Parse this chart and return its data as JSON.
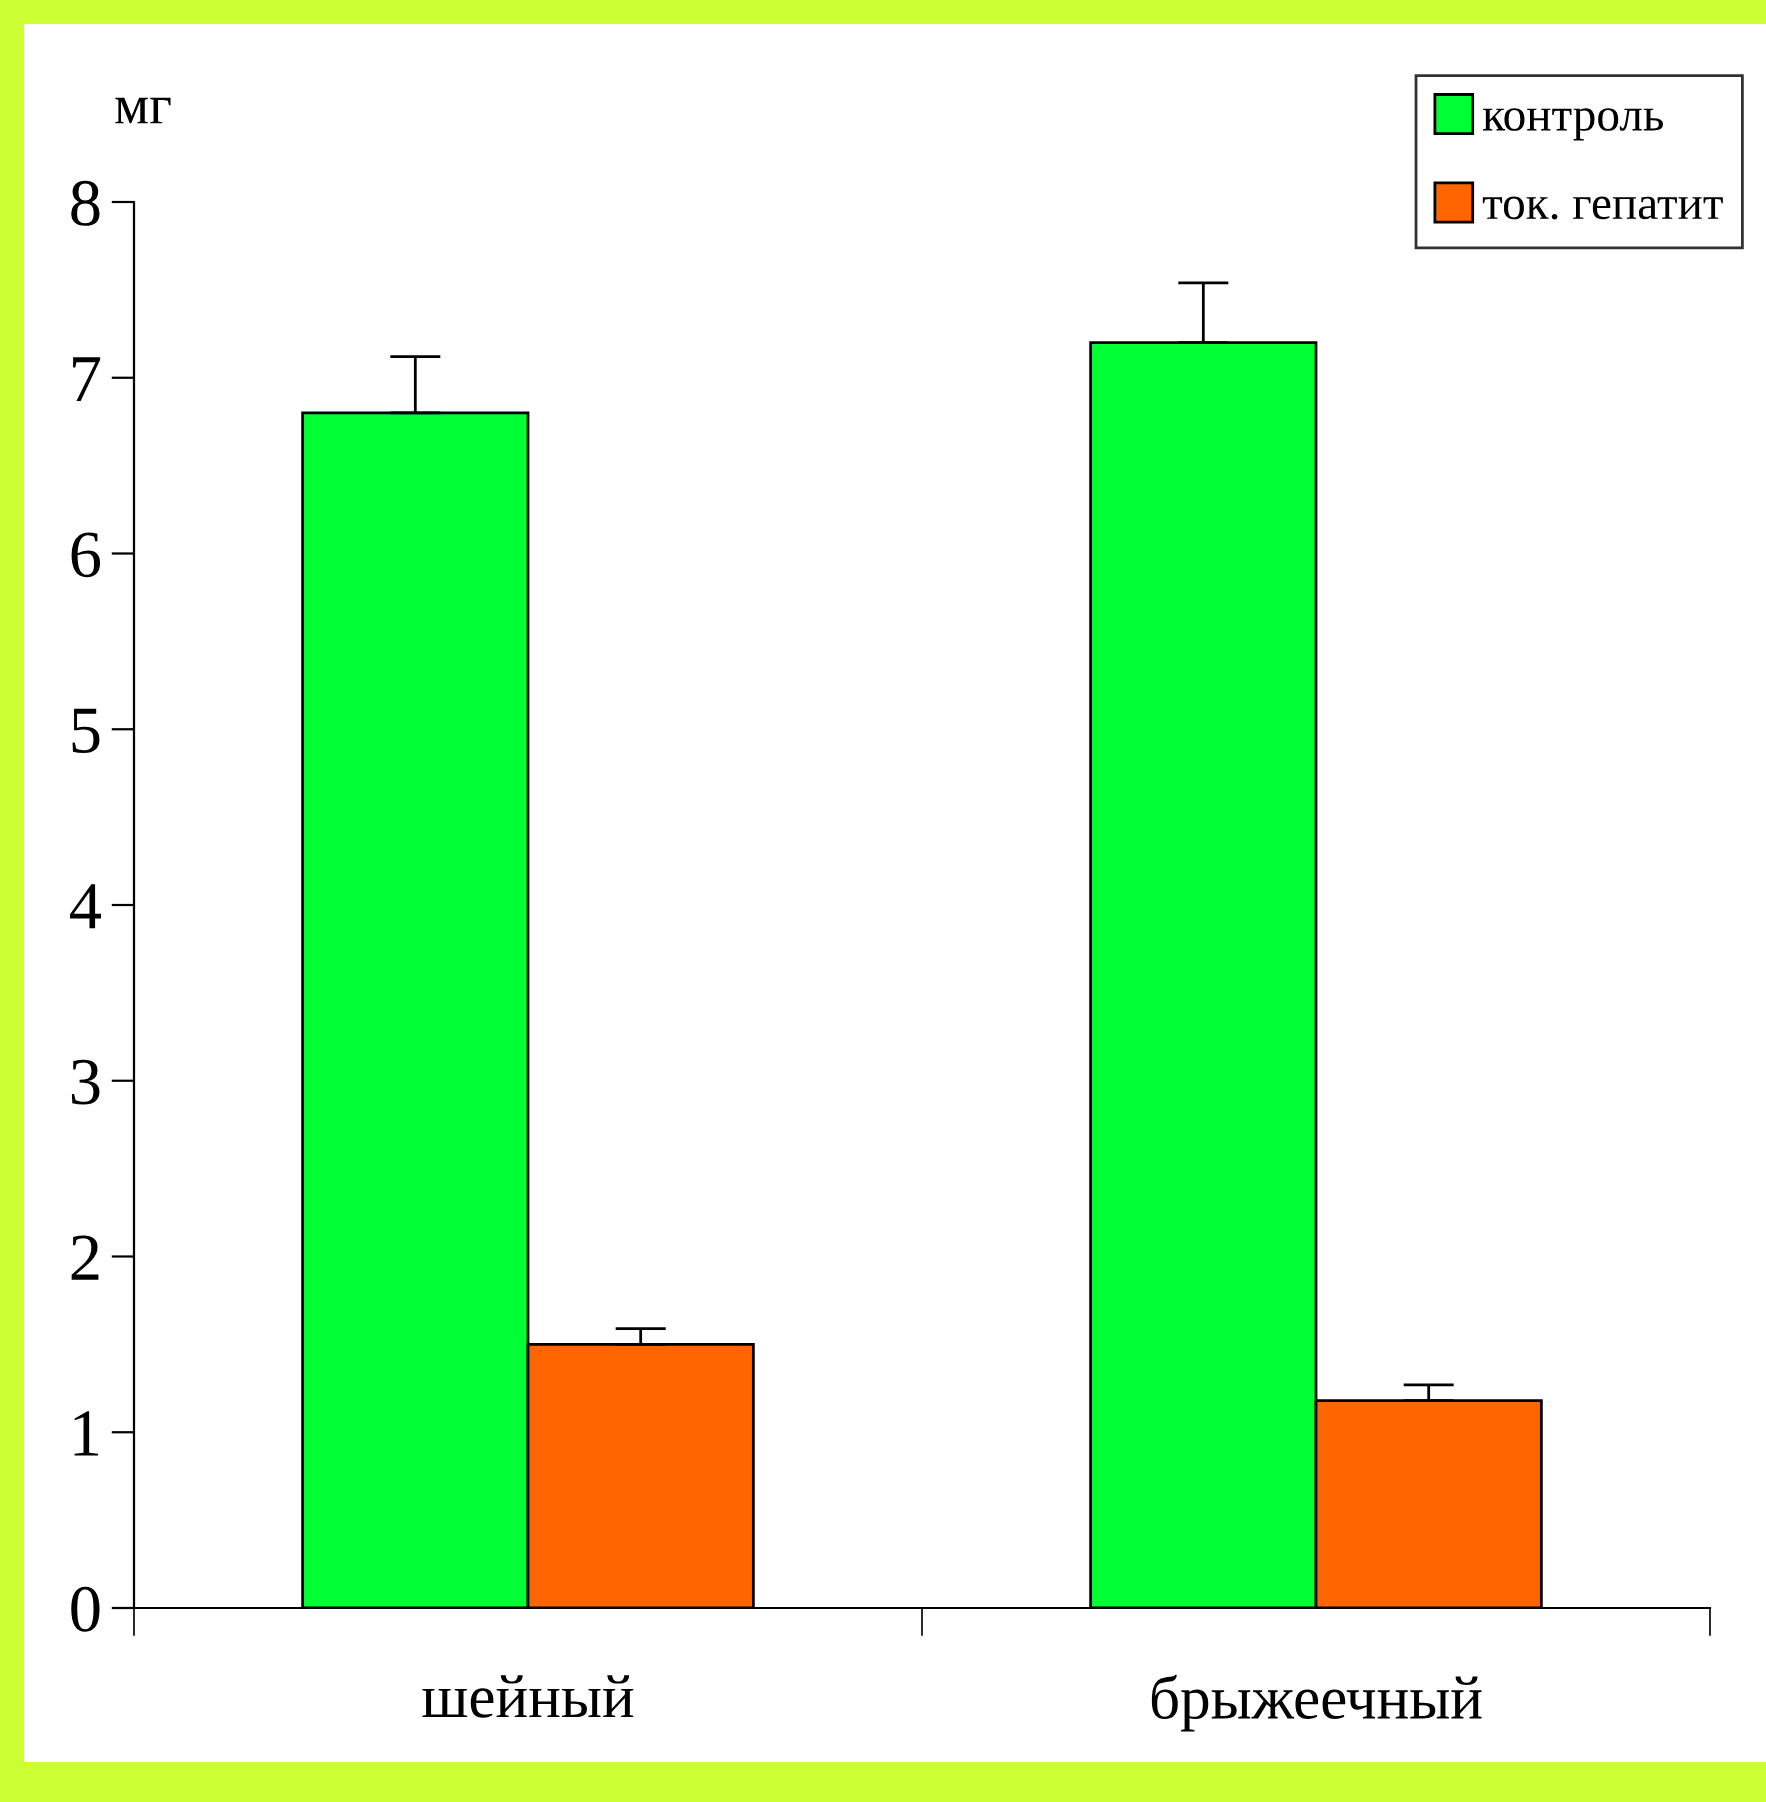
{
  "chart_data": {
    "type": "bar",
    "ylabel": "мг",
    "categories": [
      "шейный",
      "брыжеечный"
    ],
    "series": [
      {
        "name": "контроль",
        "color": "#00ff33",
        "values": [
          6.8,
          7.2
        ],
        "errors": [
          [
            6.8,
            7.12
          ],
          [
            7.2,
            7.54
          ]
        ]
      },
      {
        "name": "ток. гепатит",
        "color": "#ff6600",
        "values": [
          1.5,
          1.18
        ],
        "errors": [
          [
            1.5,
            1.59
          ],
          [
            1.18,
            1.27
          ]
        ]
      }
    ],
    "ylim": [
      0,
      8
    ],
    "yticks": [
      0,
      1,
      2,
      3,
      4,
      5,
      6,
      7,
      8
    ],
    "legend": "top right"
  }
}
